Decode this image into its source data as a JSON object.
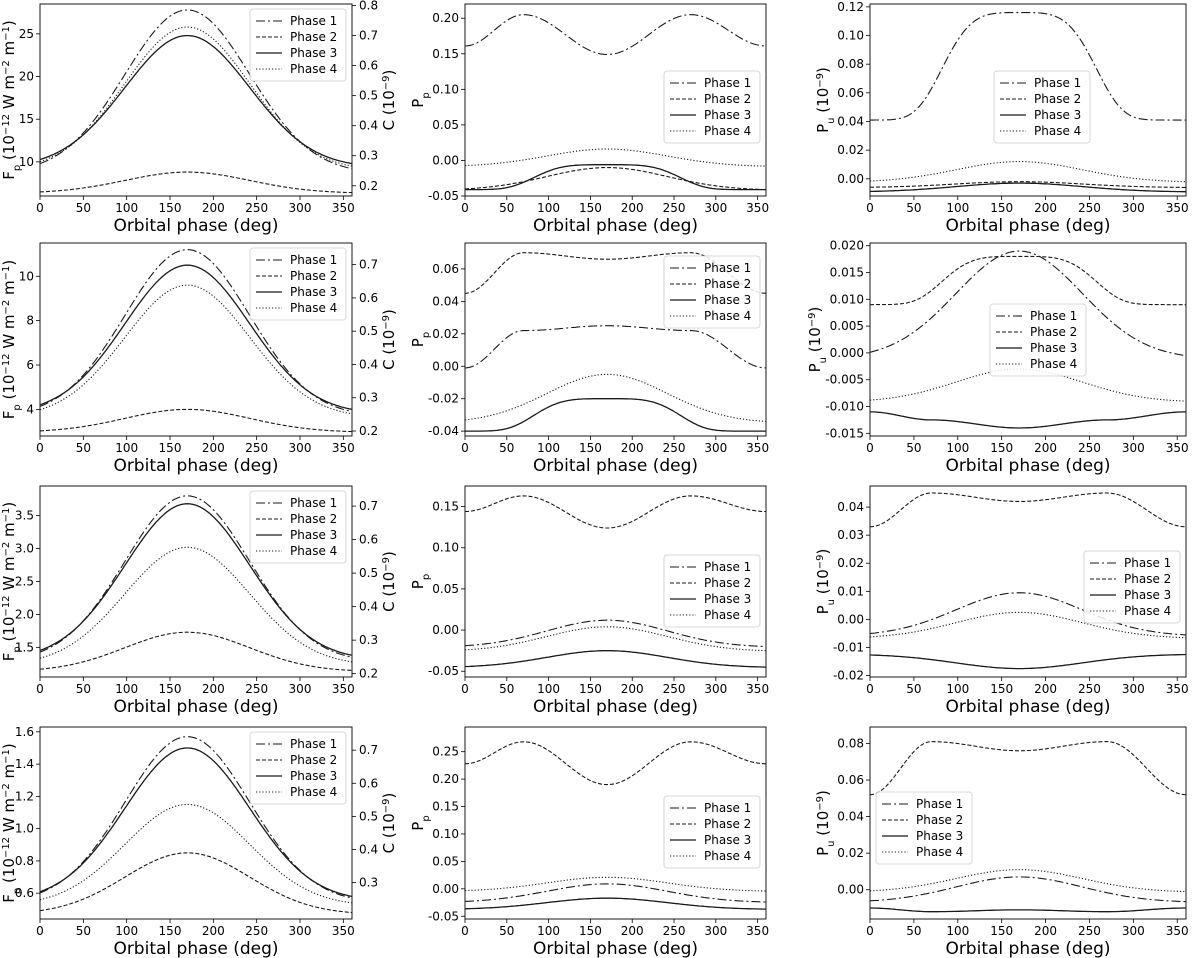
{
  "common": {
    "xlabel": "Orbital phase (deg)",
    "xticks": [
      0,
      50,
      100,
      150,
      200,
      250,
      300,
      350
    ],
    "xlim": [
      0,
      360
    ]
  },
  "legend_entries": [
    "Phase 1",
    "Phase 2",
    "Phase 3",
    "Phase 4"
  ],
  "chart_data": [
    {
      "id": "r1c1",
      "type": "line",
      "ylabel": "F_p (10^-12 W m^-2 m^-1)",
      "ylabel2": "C (10^-9)",
      "ylim": [
        6.0,
        28.5
      ],
      "yticks": [
        10,
        15,
        20,
        25
      ],
      "yticks2": [
        0.2,
        0.3,
        0.4,
        0.5,
        0.6,
        0.7,
        0.8
      ],
      "ylim2": [
        0.166,
        0.805
      ],
      "legend_pos": "top-right",
      "series": [
        {
          "name": "Phase 1",
          "kind": "bump",
          "base": 9.2,
          "peak": 27.8
        },
        {
          "name": "Phase 2",
          "kind": "bump",
          "base": 6.4,
          "peak": 8.8
        },
        {
          "name": "Phase 3",
          "kind": "bump",
          "base": 9.8,
          "peak": 24.8
        },
        {
          "name": "Phase 4",
          "kind": "bump",
          "base": 9.5,
          "peak": 25.8
        }
      ]
    },
    {
      "id": "r1c2",
      "type": "line",
      "ylabel": "P_p",
      "ylim": [
        -0.05,
        0.22
      ],
      "yticks": [
        -0.05,
        0.0,
        0.05,
        0.1,
        0.15,
        0.2
      ],
      "legend_pos": "center-right",
      "series": [
        {
          "name": "Phase 1",
          "kind": "wave",
          "ends": 0.161,
          "mid": 0.149,
          "lobe": 0.205
        },
        {
          "name": "Phase 2",
          "kind": "bump",
          "base": -0.041,
          "peak": -0.01
        },
        {
          "name": "Phase 3",
          "kind": "plateau",
          "base": -0.041,
          "peak": -0.006
        },
        {
          "name": "Phase 4",
          "kind": "bump",
          "base": -0.008,
          "peak": 0.016
        }
      ]
    },
    {
      "id": "r1c3",
      "type": "line",
      "ylabel": "P_u (10^-9)",
      "ylim": [
        -0.012,
        0.122
      ],
      "yticks": [
        0.0,
        0.02,
        0.04,
        0.06,
        0.08,
        0.1,
        0.12
      ],
      "legend_pos": "center-right",
      "series": [
        {
          "name": "Phase 1",
          "kind": "plateau",
          "base": 0.041,
          "peak": 0.116
        },
        {
          "name": "Phase 2",
          "kind": "bump",
          "base": -0.006,
          "peak": -0.002
        },
        {
          "name": "Phase 3",
          "kind": "bump",
          "base": -0.009,
          "peak": -0.003
        },
        {
          "name": "Phase 4",
          "kind": "bump",
          "base": -0.002,
          "peak": 0.012
        }
      ]
    },
    {
      "id": "r2c1",
      "type": "line",
      "ylabel": "F_p (10^-12 W m^-2 m^-1)",
      "ylabel2": "C (10^-9)",
      "ylim": [
        2.8,
        11.5
      ],
      "yticks": [
        4,
        6,
        8,
        10
      ],
      "yticks2": [
        0.2,
        0.3,
        0.4,
        0.5,
        0.6,
        0.7
      ],
      "ylim2": [
        0.185,
        0.765
      ],
      "legend_pos": "top-right",
      "series": [
        {
          "name": "Phase 1",
          "kind": "bump",
          "base": 3.9,
          "peak": 11.2
        },
        {
          "name": "Phase 2",
          "kind": "bump",
          "base": 3.0,
          "peak": 4.0
        },
        {
          "name": "Phase 3",
          "kind": "bump",
          "base": 4.0,
          "peak": 10.5
        },
        {
          "name": "Phase 4",
          "kind": "bump",
          "base": 3.8,
          "peak": 9.6
        }
      ]
    },
    {
      "id": "r2c2",
      "type": "line",
      "ylabel": "P_p",
      "ylim": [
        -0.043,
        0.076
      ],
      "yticks": [
        -0.04,
        -0.02,
        0.0,
        0.02,
        0.04,
        0.06
      ],
      "legend_pos": "top-right",
      "series": [
        {
          "name": "Phase 1",
          "kind": "wave",
          "ends": -0.001,
          "mid": 0.025,
          "lobe": 0.022
        },
        {
          "name": "Phase 2",
          "kind": "wave",
          "ends": 0.045,
          "mid": 0.066,
          "lobe": 0.07
        },
        {
          "name": "Phase 3",
          "kind": "plateau",
          "base": -0.04,
          "peak": -0.02
        },
        {
          "name": "Phase 4",
          "kind": "bump",
          "base": -0.034,
          "peak": -0.005
        }
      ]
    },
    {
      "id": "r2c3",
      "type": "line",
      "ylabel": "P_u (10^-9)",
      "ylim": [
        -0.0155,
        0.0205
      ],
      "yticks": [
        -0.015,
        -0.01,
        -0.005,
        0.0,
        0.005,
        0.01,
        0.015,
        0.02
      ],
      "legend_pos": "center",
      "series": [
        {
          "name": "Phase 1",
          "kind": "bump",
          "base": -0.0005,
          "peak": 0.019
        },
        {
          "name": "Phase 2",
          "kind": "plateau",
          "base": 0.009,
          "peak": 0.018
        },
        {
          "name": "Phase 3",
          "kind": "wave",
          "ends": -0.011,
          "mid": -0.014,
          "lobe": -0.0125
        },
        {
          "name": "Phase 4",
          "kind": "bump",
          "base": -0.009,
          "peak": -0.003
        }
      ]
    },
    {
      "id": "r3c1",
      "type": "line",
      "ylabel": "F_p (10^-12 W m^-2 m^-1)",
      "ylabel2": "C (10^-9)",
      "ylim": [
        1.05,
        3.95
      ],
      "yticks": [
        1.5,
        2.0,
        2.5,
        3.0,
        3.5
      ],
      "yticks2": [
        0.2,
        0.3,
        0.4,
        0.5,
        0.6,
        0.7
      ],
      "ylim2": [
        0.19,
        0.76
      ],
      "legend_pos": "top-right",
      "series": [
        {
          "name": "Phase 1",
          "kind": "bump",
          "base": 1.35,
          "peak": 3.8
        },
        {
          "name": "Phase 2",
          "kind": "bump",
          "base": 1.15,
          "peak": 1.73
        },
        {
          "name": "Phase 3",
          "kind": "bump",
          "base": 1.38,
          "peak": 3.68
        },
        {
          "name": "Phase 4",
          "kind": "bump",
          "base": 1.28,
          "peak": 3.02
        }
      ]
    },
    {
      "id": "r3c2",
      "type": "line",
      "ylabel": "P_p",
      "ylim": [
        -0.057,
        0.175
      ],
      "yticks": [
        -0.05,
        0.0,
        0.05,
        0.1,
        0.15
      ],
      "legend_pos": "center-right",
      "series": [
        {
          "name": "Phase 1",
          "kind": "bump",
          "base": -0.02,
          "peak": 0.012
        },
        {
          "name": "Phase 2",
          "kind": "wave",
          "ends": 0.144,
          "mid": 0.124,
          "lobe": 0.163
        },
        {
          "name": "Phase 3",
          "kind": "bump",
          "base": -0.045,
          "peak": -0.025
        },
        {
          "name": "Phase 4",
          "kind": "bump",
          "base": -0.025,
          "peak": 0.004
        }
      ]
    },
    {
      "id": "r3c3",
      "type": "line",
      "ylabel": "P_u (10^-9)",
      "ylim": [
        -0.0205,
        0.0475
      ],
      "yticks": [
        -0.02,
        -0.01,
        0.0,
        0.01,
        0.02,
        0.03,
        0.04
      ],
      "legend_pos": "center-right",
      "series": [
        {
          "name": "Phase 1",
          "kind": "bump",
          "base": -0.0055,
          "peak": 0.0095
        },
        {
          "name": "Phase 2",
          "kind": "wave",
          "ends": 0.033,
          "mid": 0.042,
          "lobe": 0.045
        },
        {
          "name": "Phase 3",
          "kind": "bump",
          "base": -0.0125,
          "peak": -0.0175
        },
        {
          "name": "Phase 4",
          "kind": "bump",
          "base": -0.0065,
          "peak": 0.0025
        }
      ]
    },
    {
      "id": "r4c1",
      "type": "line",
      "ylabel": "F_p (10^-12 W m^-2 m^-1)",
      "ylabel2": "C (10^-9)",
      "ylim": [
        0.44,
        1.63
      ],
      "yticks": [
        0.6,
        0.8,
        1.0,
        1.2,
        1.4,
        1.6
      ],
      "yticks2": [
        0.3,
        0.4,
        0.5,
        0.6,
        0.7
      ],
      "ylim2": [
        0.19,
        0.77
      ],
      "legend_pos": "top-right",
      "series": [
        {
          "name": "Phase 1",
          "kind": "bump",
          "base": 0.57,
          "peak": 1.57
        },
        {
          "name": "Phase 2",
          "kind": "bump",
          "base": 0.48,
          "peak": 0.85
        },
        {
          "name": "Phase 3",
          "kind": "bump",
          "base": 0.58,
          "peak": 1.5
        },
        {
          "name": "Phase 4",
          "kind": "bump",
          "base": 0.54,
          "peak": 1.15
        }
      ]
    },
    {
      "id": "r4c2",
      "type": "line",
      "ylabel": "P_p",
      "ylim": [
        -0.055,
        0.295
      ],
      "yticks": [
        -0.05,
        0.0,
        0.05,
        0.1,
        0.15,
        0.2,
        0.25
      ],
      "legend_pos": "center-right",
      "series": [
        {
          "name": "Phase 1",
          "kind": "bump",
          "base": -0.024,
          "peak": 0.009
        },
        {
          "name": "Phase 2",
          "kind": "wave",
          "ends": 0.228,
          "mid": 0.19,
          "lobe": 0.268
        },
        {
          "name": "Phase 3",
          "kind": "bump",
          "base": -0.037,
          "peak": -0.017
        },
        {
          "name": "Phase 4",
          "kind": "bump",
          "base": -0.004,
          "peak": 0.021
        }
      ]
    },
    {
      "id": "r4c3",
      "type": "line",
      "ylabel": "P_u (10^-9)",
      "ylim": [
        -0.016,
        0.089
      ],
      "yticks": [
        0.0,
        0.02,
        0.04,
        0.06,
        0.08
      ],
      "legend_pos": "center-left",
      "series": [
        {
          "name": "Phase 1",
          "kind": "bump",
          "base": -0.0065,
          "peak": 0.007
        },
        {
          "name": "Phase 2",
          "kind": "wave",
          "ends": 0.052,
          "mid": 0.076,
          "lobe": 0.081
        },
        {
          "name": "Phase 3",
          "kind": "wave",
          "ends": -0.01,
          "mid": -0.011,
          "lobe": -0.012
        },
        {
          "name": "Phase 4",
          "kind": "bump",
          "base": -0.001,
          "peak": 0.011
        }
      ]
    }
  ]
}
